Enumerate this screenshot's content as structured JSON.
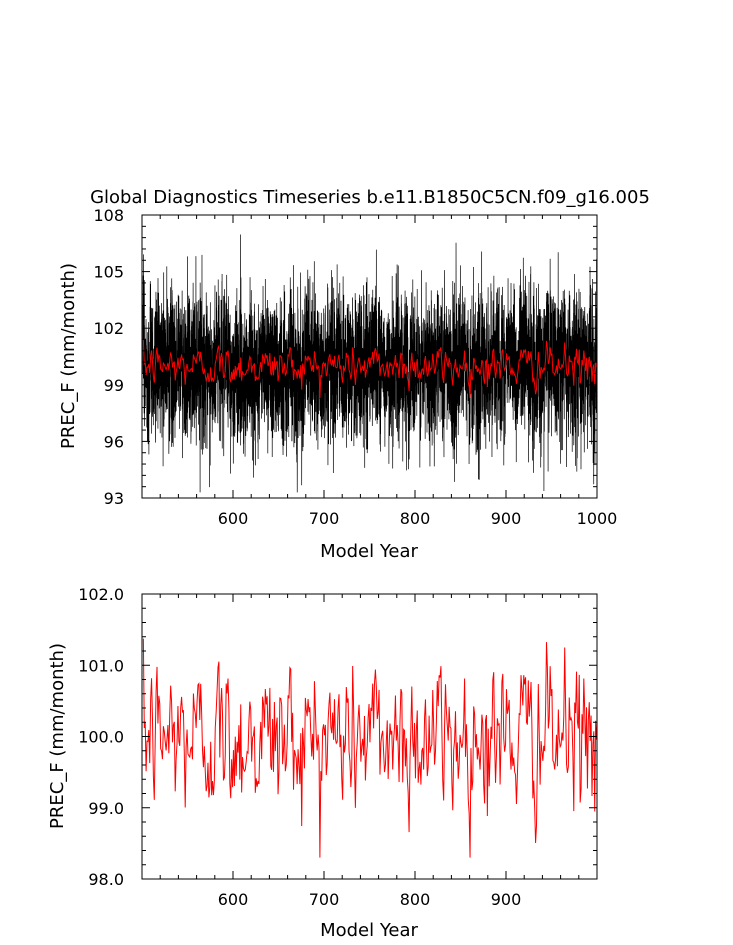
{
  "chart_data": [
    {
      "type": "line",
      "title": "Global Diagnostics Timeseries b.e11.B1850C5CN.f09_g16.005",
      "xlabel": "Model Year",
      "ylabel": "PREC_F (mm/month)",
      "xlim": [
        500,
        1000
      ],
      "ylim": [
        93,
        108
      ],
      "x_ticks": [
        "600",
        "700",
        "800",
        "900",
        "1000"
      ],
      "y_ticks": [
        "93",
        "96",
        "99",
        "102",
        "105",
        "108"
      ],
      "legend": "none",
      "grid": false,
      "series": [
        {
          "role": "monthly",
          "color": "#000000",
          "mean": 100.0,
          "spread": 1.9,
          "min": 93.3,
          "max": 107.2,
          "step_years": 0.0833
        },
        {
          "role": "annual",
          "color": "#ff0000",
          "mean": 100.0,
          "spread": 0.55,
          "min": 98.3,
          "max": 101.5,
          "step_years": 1
        }
      ]
    },
    {
      "type": "line",
      "title": "",
      "xlabel": "Model Year",
      "ylabel": "PREC_F (mm/month)",
      "xlim": [
        500,
        1000
      ],
      "ylim": [
        98,
        102
      ],
      "x_ticks": [
        "600",
        "700",
        "800",
        "900"
      ],
      "y_ticks": [
        "98.0",
        "99.0",
        "100.0",
        "101.0",
        "102.0"
      ],
      "legend": "none",
      "grid": false,
      "series": [
        {
          "role": "annual",
          "color": "#ff0000",
          "mean": 100.0,
          "spread": 0.55,
          "min": 98.3,
          "max": 101.5,
          "step_years": 1
        }
      ]
    }
  ]
}
